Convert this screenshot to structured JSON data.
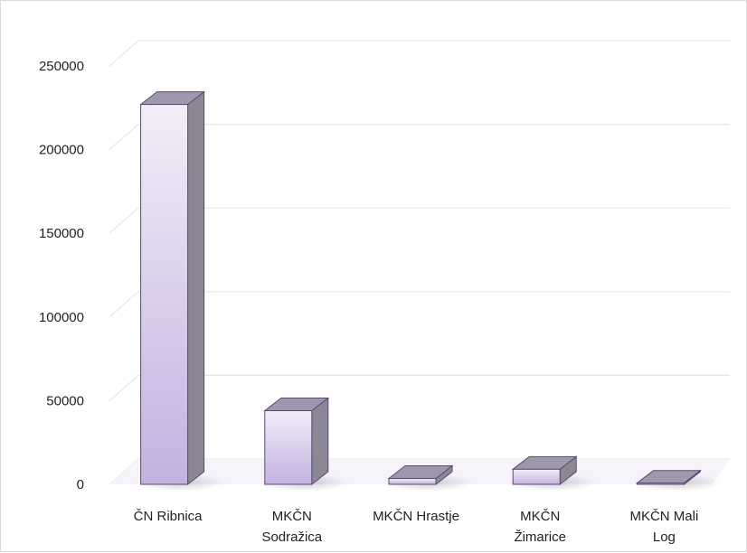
{
  "chart_data": {
    "type": "bar",
    "three_d": true,
    "title": "",
    "xlabel": "",
    "ylabel": "",
    "categories": [
      [
        "ČN Ribnica"
      ],
      [
        "MKČN",
        "Sodražica"
      ],
      [
        "MKČN Hrastje"
      ],
      [
        "MKČN",
        "Žimarice"
      ],
      [
        "MKČN Mali",
        "Log"
      ]
    ],
    "series": [
      {
        "values": [
          227000,
          44000,
          3500,
          9000,
          700
        ]
      }
    ],
    "ylim": [
      0,
      250000
    ],
    "yticks": [
      "0",
      "50000",
      "100000",
      "150000",
      "200000",
      "250000"
    ],
    "grid": true,
    "legend": "none",
    "colors": {
      "bar_front_top": "#f2eef8",
      "bar_front_bottom": "#c3b1e0",
      "bar_side": "#8c8794",
      "bar_top": "#9f97ab",
      "bar_edge": "#5a4a72",
      "gridline": "#e6e6e6",
      "floor": "#f6f3fa"
    }
  }
}
